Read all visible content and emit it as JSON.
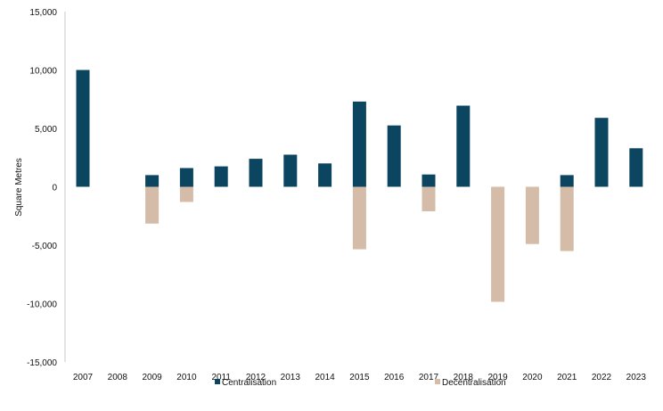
{
  "chart_data": {
    "type": "bar",
    "title": "",
    "xlabel": "",
    "ylabel": "Square Metres",
    "ylim": [
      -15000,
      15000
    ],
    "yticks": [
      15000,
      10000,
      5000,
      0,
      -5000,
      -10000,
      -15000
    ],
    "ytick_labels": [
      "15,000",
      "10,000",
      "5,000",
      "0",
      "-5,000",
      "-10,000",
      "-15,000"
    ],
    "categories": [
      "2007",
      "2008",
      "2009",
      "2010",
      "2011",
      "2012",
      "2013",
      "2014",
      "2015",
      "2016",
      "2017",
      "2018",
      "2019",
      "2020",
      "2021",
      "2022",
      "2023"
    ],
    "series": [
      {
        "name": "Centralisation",
        "color": "#0b4560",
        "values": [
          10000,
          0,
          1000,
          1600,
          1750,
          2400,
          2750,
          2000,
          7300,
          5250,
          1050,
          6950,
          0,
          0,
          1000,
          5900,
          3300
        ]
      },
      {
        "name": "Decentralisation",
        "color": "#d4bca8",
        "values": [
          0,
          0,
          -3150,
          -1300,
          0,
          0,
          0,
          0,
          -5350,
          0,
          -2100,
          0,
          -9850,
          -4900,
          -5500,
          0,
          0
        ]
      }
    ],
    "legend_position": "bottom"
  }
}
